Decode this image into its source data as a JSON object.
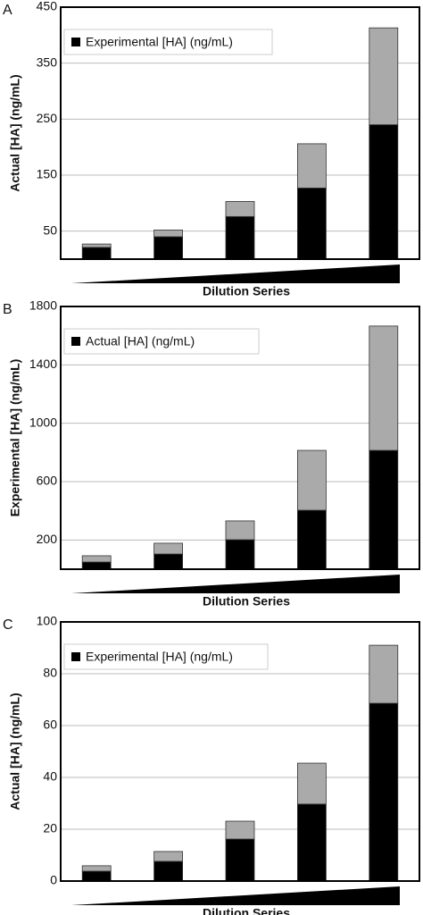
{
  "chart_data": [
    {
      "type": "bar",
      "stacked": true,
      "label": "A",
      "y_label": "Actual [HA] (ng/mL)",
      "x_label": "Dilution Series",
      "categories": [
        null,
        null,
        null,
        null,
        null
      ],
      "series": [
        {
          "name": "Experimental [HA] (ng/mL)",
          "color": "#000000",
          "values": [
            21,
            40,
            76,
            127,
            240
          ]
        },
        {
          "color": "#aaaaaa",
          "values": [
            6,
            12,
            27,
            79,
            173
          ]
        }
      ],
      "ylim": [
        0,
        450
      ],
      "yticks": [
        50,
        150,
        250,
        350,
        450
      ],
      "grid": true,
      "legend": "upper left"
    },
    {
      "type": "bar",
      "stacked": true,
      "label": "B",
      "y_label": "Experimental [HA] (ng/mL)",
      "x_label": "Dilution Series",
      "categories": [
        null,
        null,
        null,
        null,
        null
      ],
      "series": [
        {
          "name": "Actual [HA] (ng/mL)",
          "color": "#000000",
          "values": [
            49,
            104,
            202,
            404,
            814
          ]
        },
        {
          "color": "#aaaaaa",
          "values": [
            43,
            74,
            129,
            410,
            852
          ]
        }
      ],
      "ylim": [
        0,
        1800
      ],
      "yticks": [
        200,
        600,
        1000,
        1400,
        1800
      ],
      "grid": true,
      "legend": "upper left"
    },
    {
      "type": "bar",
      "stacked": true,
      "label": "C",
      "y_label": "Actual [HA] (ng/mL)",
      "x_label": "Dilution Series",
      "categories": [
        null,
        null,
        null,
        null,
        null
      ],
      "series": [
        {
          "name": "Experimental [HA] (ng/mL)",
          "color": "#000000",
          "values": [
            3.8,
            7.6,
            16.2,
            29.7,
            68.6
          ]
        },
        {
          "color": "#aaaaaa",
          "values": [
            2.1,
            3.8,
            6.9,
            15.8,
            22.4
          ]
        }
      ],
      "ylim": [
        0,
        100
      ],
      "yticks": [
        0,
        20,
        40,
        60,
        80,
        100
      ],
      "grid": true,
      "legend": "upper left"
    }
  ]
}
